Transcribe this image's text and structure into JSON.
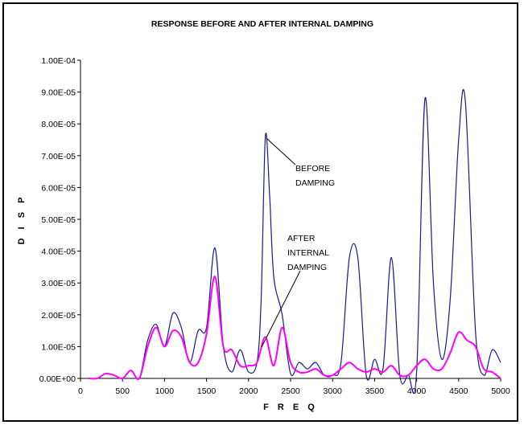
{
  "chart_data": {
    "type": "line",
    "title": "RESPONSE BEFORE AND AFTER INTERNAL DAMPING",
    "xlabel": "F R E Q",
    "ylabel": "D I S P",
    "xlim": [
      0,
      5000
    ],
    "ylim": [
      0,
      0.0001
    ],
    "x_ticks": [
      "0",
      "500",
      "1000",
      "1500",
      "2000",
      "2500",
      "3000",
      "3500",
      "4000",
      "4500",
      "5000"
    ],
    "y_ticks": [
      "0.00E+00",
      "1.00E-05",
      "2.00E-05",
      "3.00E-05",
      "4.00E-05",
      "5.00E-05",
      "6.00E-05",
      "7.00E-05",
      "8.00E-05",
      "9.00E-05",
      "1.00E-04"
    ],
    "grid": false,
    "legend": "none",
    "annotations": [
      {
        "lines": [
          "BEFORE",
          "DAMPING"
        ]
      },
      {
        "lines": [
          "AFTER",
          "INTERNAL",
          "DAMPING"
        ]
      }
    ],
    "series": [
      {
        "color": "#1a1a8c",
        "points": [
          [
            100,
            0
          ],
          [
            200,
            0
          ],
          [
            300,
            1.5e-06
          ],
          [
            400,
            1e-06
          ],
          [
            500,
            0
          ],
          [
            600,
            2.5e-06
          ],
          [
            700,
            0
          ],
          [
            800,
            1.2e-05
          ],
          [
            900,
            1.7e-05
          ],
          [
            1000,
            1e-05
          ],
          [
            1100,
            2.05e-05
          ],
          [
            1200,
            1.6e-05
          ],
          [
            1300,
            5e-06
          ],
          [
            1400,
            1.5e-05
          ],
          [
            1500,
            1.6e-05
          ],
          [
            1600,
            4.1e-05
          ],
          [
            1700,
            1e-05
          ],
          [
            1800,
            2e-06
          ],
          [
            1900,
            9e-06
          ],
          [
            2000,
            2e-06
          ],
          [
            2100,
            5e-06
          ],
          [
            2150,
            2.5e-05
          ],
          [
            2200,
            7.6e-05
          ],
          [
            2250,
            5.8e-05
          ],
          [
            2300,
            3.2e-05
          ],
          [
            2400,
            2e-05
          ],
          [
            2500,
            1.5e-06
          ],
          [
            2600,
            5e-06
          ],
          [
            2700,
            3e-06
          ],
          [
            2800,
            5e-06
          ],
          [
            2900,
            1e-06
          ],
          [
            3000,
            1e-06
          ],
          [
            3100,
            5e-06
          ],
          [
            3200,
            3.8e-05
          ],
          [
            3300,
            3.8e-05
          ],
          [
            3400,
            1e-06
          ],
          [
            3500,
            6e-06
          ],
          [
            3600,
            3e-06
          ],
          [
            3700,
            3.8e-05
          ],
          [
            3800,
            1e-06
          ],
          [
            3900,
            1e-06
          ],
          [
            4000,
            2e-06
          ],
          [
            4100,
            8.8e-05
          ],
          [
            4200,
            3e-05
          ],
          [
            4300,
            6e-06
          ],
          [
            4400,
            2.5e-05
          ],
          [
            4500,
            7.5e-05
          ],
          [
            4580,
            8.7e-05
          ],
          [
            4700,
            1.5e-05
          ],
          [
            4800,
            1e-06
          ],
          [
            4900,
            9e-06
          ],
          [
            5000,
            5e-06
          ]
        ]
      },
      {
        "color": "#ff00ff",
        "points": [
          [
            100,
            0
          ],
          [
            200,
            0
          ],
          [
            300,
            1.5e-06
          ],
          [
            400,
            1e-06
          ],
          [
            500,
            0
          ],
          [
            600,
            2.5e-06
          ],
          [
            700,
            0
          ],
          [
            800,
            1e-05
          ],
          [
            900,
            1.6e-05
          ],
          [
            1000,
            1e-05
          ],
          [
            1100,
            1.5e-05
          ],
          [
            1200,
            1.3e-05
          ],
          [
            1300,
            5e-06
          ],
          [
            1400,
            5e-06
          ],
          [
            1500,
            1.4e-05
          ],
          [
            1600,
            3.2e-05
          ],
          [
            1700,
            1e-05
          ],
          [
            1800,
            9e-06
          ],
          [
            1900,
            4e-06
          ],
          [
            2000,
            4e-06
          ],
          [
            2100,
            5e-06
          ],
          [
            2200,
            1.3e-05
          ],
          [
            2300,
            4e-06
          ],
          [
            2400,
            1.6e-05
          ],
          [
            2500,
            5e-06
          ],
          [
            2600,
            2e-06
          ],
          [
            2700,
            2e-06
          ],
          [
            2800,
            3e-06
          ],
          [
            2900,
            1e-06
          ],
          [
            3000,
            1e-06
          ],
          [
            3100,
            3e-06
          ],
          [
            3200,
            5e-06
          ],
          [
            3300,
            3e-06
          ],
          [
            3400,
            2e-06
          ],
          [
            3500,
            3e-06
          ],
          [
            3600,
            2e-06
          ],
          [
            3700,
            4e-06
          ],
          [
            3800,
            1e-06
          ],
          [
            3900,
            1e-06
          ],
          [
            4000,
            4e-06
          ],
          [
            4100,
            6e-06
          ],
          [
            4200,
            3e-06
          ],
          [
            4300,
            3e-06
          ],
          [
            4400,
            8e-06
          ],
          [
            4500,
            1.45e-05
          ],
          [
            4600,
            1.2e-05
          ],
          [
            4700,
            1e-05
          ],
          [
            4800,
            3e-06
          ],
          [
            4900,
            2e-06
          ],
          [
            5000,
            0
          ]
        ]
      }
    ]
  }
}
